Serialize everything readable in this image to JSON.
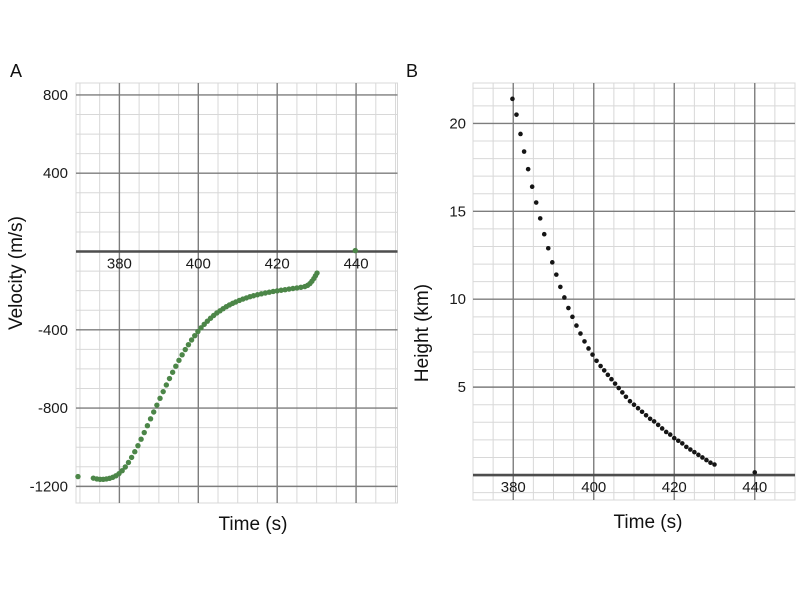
{
  "figure": {
    "background": "#ffffff",
    "panel_labels": [
      "A",
      "B"
    ]
  },
  "chart_data": [
    {
      "type": "scatter",
      "panel_label": "A",
      "title": "",
      "xlabel": "Time (s)",
      "ylabel": "Velocity (m/s)",
      "x_ticks": [
        380,
        400,
        420,
        440
      ],
      "y_ticks": [
        800,
        400,
        -400,
        -800,
        -1200
      ],
      "xlim": [
        369,
        450.5
      ],
      "ylim": [
        -1285,
        861
      ],
      "x_minor_step": 5,
      "y_minor_step": 100,
      "grid": true,
      "legend": false,
      "zero_axis": true,
      "point_color": "#4c8648",
      "point_radius": 2.7,
      "points": [
        [
          369.5,
          -1150
        ],
        [
          373.4,
          -1158
        ],
        [
          374.3,
          -1162
        ],
        [
          375.1,
          -1164
        ],
        [
          375.9,
          -1164
        ],
        [
          376.7,
          -1162
        ],
        [
          377.5,
          -1159
        ],
        [
          378.3,
          -1154
        ],
        [
          379.1,
          -1146
        ],
        [
          379.9,
          -1135
        ],
        [
          380.7,
          -1120
        ],
        [
          381.5,
          -1101
        ],
        [
          382.3,
          -1078
        ],
        [
          383.1,
          -1052
        ],
        [
          383.9,
          -1023
        ],
        [
          384.7,
          -992
        ],
        [
          385.5,
          -959
        ],
        [
          386.3,
          -925
        ],
        [
          387.1,
          -890
        ],
        [
          387.9,
          -855
        ],
        [
          388.7,
          -820
        ],
        [
          389.5,
          -785
        ],
        [
          390.3,
          -750
        ],
        [
          391.1,
          -716
        ],
        [
          391.9,
          -682
        ],
        [
          392.7,
          -649
        ],
        [
          393.5,
          -617
        ],
        [
          394.3,
          -586
        ],
        [
          395.1,
          -556
        ],
        [
          395.9,
          -528
        ],
        [
          396.7,
          -501
        ],
        [
          397.5,
          -476
        ],
        [
          398.3,
          -452
        ],
        [
          399.1,
          -430
        ],
        [
          399.9,
          -409
        ],
        [
          400.7,
          -390
        ],
        [
          401.5,
          -372
        ],
        [
          402.3,
          -356
        ],
        [
          403.1,
          -341
        ],
        [
          403.9,
          -327
        ],
        [
          404.7,
          -314
        ],
        [
          405.5,
          -303
        ],
        [
          406.3,
          -292
        ],
        [
          407.1,
          -282
        ],
        [
          407.9,
          -273
        ],
        [
          408.7,
          -265
        ],
        [
          409.5,
          -258
        ],
        [
          410.4,
          -250
        ],
        [
          411.3,
          -243
        ],
        [
          412.2,
          -237
        ],
        [
          413.1,
          -231
        ],
        [
          414,
          -226
        ],
        [
          415,
          -221
        ],
        [
          416,
          -216
        ],
        [
          417,
          -212
        ],
        [
          418,
          -208
        ],
        [
          419,
          -204
        ],
        [
          420,
          -201
        ],
        [
          421,
          -198
        ],
        [
          422,
          -195
        ],
        [
          423,
          -192
        ],
        [
          424,
          -189
        ],
        [
          425,
          -186
        ],
        [
          426,
          -183
        ],
        [
          427,
          -179
        ],
        [
          427.7,
          -173
        ],
        [
          428.3,
          -164
        ],
        [
          428.8,
          -152
        ],
        [
          429.3,
          -138
        ],
        [
          429.7,
          -124
        ],
        [
          430.1,
          -110
        ],
        [
          439.8,
          5
        ]
      ]
    },
    {
      "type": "scatter",
      "panel_label": "B",
      "title": "",
      "xlabel": "Time (s)",
      "ylabel": "Height  (km)",
      "x_ticks": [
        380,
        400,
        420,
        440
      ],
      "y_ticks": [
        20,
        15,
        10,
        5
      ],
      "xlim": [
        370,
        450
      ],
      "ylim": [
        -1.42,
        22.3
      ],
      "x_minor_step": 5,
      "y_minor_step": 1,
      "grid": true,
      "legend": false,
      "zero_axis": true,
      "point_color": "#151515",
      "point_radius": 2.3,
      "points": [
        [
          379.8,
          21.4
        ],
        [
          380.8,
          20.5
        ],
        [
          381.8,
          19.4
        ],
        [
          382.7,
          18.4
        ],
        [
          383.7,
          17.4
        ],
        [
          384.7,
          16.4
        ],
        [
          385.7,
          15.5
        ],
        [
          386.7,
          14.6
        ],
        [
          387.7,
          13.7
        ],
        [
          388.7,
          12.9
        ],
        [
          389.7,
          12.1
        ],
        [
          390.7,
          11.4
        ],
        [
          391.7,
          10.7
        ],
        [
          392.7,
          10.1
        ],
        [
          393.7,
          9.5
        ],
        [
          394.7,
          9.0
        ],
        [
          395.7,
          8.5
        ],
        [
          396.7,
          8.05
        ],
        [
          397.7,
          7.6
        ],
        [
          398.7,
          7.2
        ],
        [
          399.7,
          6.85
        ],
        [
          400.7,
          6.5
        ],
        [
          401.7,
          6.2
        ],
        [
          402.6,
          5.95
        ],
        [
          403.5,
          5.7
        ],
        [
          404.4,
          5.45
        ],
        [
          405.3,
          5.2
        ],
        [
          406.2,
          4.95
        ],
        [
          407.1,
          4.7
        ],
        [
          408,
          4.45
        ],
        [
          409,
          4.2
        ],
        [
          410,
          4.0
        ],
        [
          411,
          3.8
        ],
        [
          412,
          3.6
        ],
        [
          413,
          3.4
        ],
        [
          414,
          3.2
        ],
        [
          415,
          3.05
        ],
        [
          416,
          2.85
        ],
        [
          417,
          2.65
        ],
        [
          418,
          2.45
        ],
        [
          419,
          2.3
        ],
        [
          420,
          2.1
        ],
        [
          421,
          1.95
        ],
        [
          422,
          1.8
        ],
        [
          423,
          1.6
        ],
        [
          424,
          1.45
        ],
        [
          425,
          1.3
        ],
        [
          426,
          1.15
        ],
        [
          427,
          1.0
        ],
        [
          428,
          0.85
        ],
        [
          429,
          0.7
        ],
        [
          430,
          0.6
        ],
        [
          440,
          0.15
        ]
      ]
    }
  ],
  "style": {
    "minor_grid_color": "#d8d8d8",
    "major_grid_color": "#7d7d7d",
    "zero_axis_color": "#4d4d4d",
    "tick_text_color": "#1a1a1a",
    "label_text_color": "#111111"
  }
}
